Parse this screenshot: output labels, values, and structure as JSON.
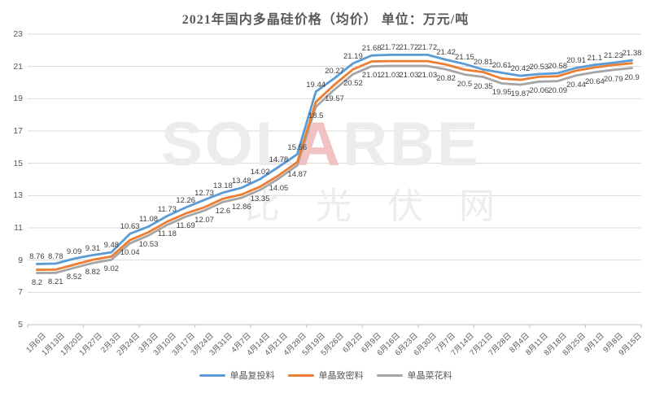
{
  "watermark": {
    "brand_prefix": "SOL",
    "brand_a": "A",
    "brand_suffix": "RBE",
    "zh_text": "比光伏网"
  },
  "colors": {
    "blue": "#5B9BD5",
    "orange": "#ED7D31",
    "gray": "#A5A5A5",
    "gridline": "#D9D9D9",
    "axis_line": "#BFBFBF",
    "axis_text": "#595959",
    "data_label_text": "#404040",
    "watermark_gray": "#ECECEC",
    "watermark_red": "#F2C2C2"
  },
  "chart_data": {
    "type": "line",
    "title": "2021年国内多晶硅价格（均价） 单位：万元/吨",
    "ylim": [
      5,
      23
    ],
    "ytick_step": 2,
    "grid": "horizontal",
    "legend_position": "bottom",
    "categories": [
      "1月6日",
      "1月13日",
      "1月20日",
      "1月27日",
      "2月3日",
      "2月24日",
      "3月3日",
      "3月10日",
      "3月17日",
      "3月24日",
      "3月31日",
      "4月7日",
      "4月14日",
      "4月21日",
      "4月28日",
      "5月19日",
      "5月26日",
      "6月2日",
      "6月9日",
      "6月16日",
      "6月23日",
      "6月30日",
      "7月7日",
      "7月14日",
      "7月21日",
      "7月28日",
      "8月4日",
      "8月11日",
      "8月18日",
      "8月25日",
      "9月1日",
      "9月8日",
      "9月15日"
    ],
    "series": [
      {
        "key": "refeed",
        "name": "单晶复投料",
        "color": "#5B9BD5",
        "labels": "above",
        "values": [
          8.76,
          8.78,
          9.09,
          9.31,
          9.48,
          10.63,
          11.08,
          11.73,
          12.26,
          12.73,
          13.18,
          13.48,
          14.02,
          14.78,
          15.56,
          19.44,
          20.27,
          21.19,
          21.68,
          21.72,
          21.72,
          21.72,
          21.42,
          21.15,
          20.81,
          20.61,
          20.42,
          20.53,
          20.58,
          20.91,
          21.1,
          21.23,
          21.38
        ]
      },
      {
        "key": "dense",
        "name": "单晶致密料",
        "color": "#ED7D31",
        "labels": "none",
        "values_note": "no data labels shown in chart; values estimated from line position",
        "values": [
          8.4,
          8.41,
          8.72,
          9.02,
          9.22,
          10.24,
          10.73,
          11.38,
          11.89,
          12.27,
          12.8,
          13.06,
          13.55,
          14.25,
          15.07,
          18.8,
          19.87,
          20.82,
          21.31,
          21.33,
          21.33,
          21.33,
          21.12,
          20.8,
          20.65,
          20.25,
          20.17,
          20.36,
          20.39,
          20.74,
          20.94,
          21.09,
          21.2
        ]
      },
      {
        "key": "cauliflower",
        "name": "单晶菜花料",
        "color": "#A5A5A5",
        "labels": "below",
        "values": [
          8.2,
          8.21,
          8.52,
          8.82,
          9.02,
          10.04,
          10.53,
          11.18,
          11.69,
          12.07,
          12.6,
          12.86,
          13.35,
          14.05,
          14.87,
          18.5,
          19.57,
          20.52,
          21.01,
          21.03,
          21.03,
          21.03,
          20.82,
          20.5,
          20.35,
          19.95,
          19.87,
          20.06,
          20.09,
          20.44,
          20.64,
          20.79,
          20.9
        ]
      }
    ]
  }
}
